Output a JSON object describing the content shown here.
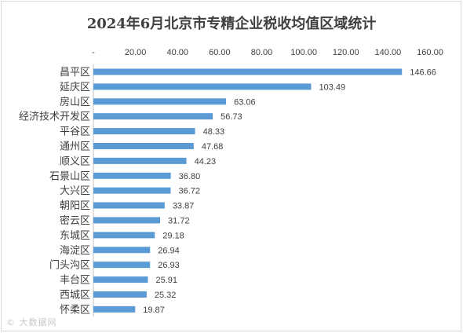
{
  "chart_data": {
    "type": "bar",
    "orientation": "horizontal",
    "title": "2024年6月北京市专精企业税收均值区域统计",
    "categories": [
      "昌平区",
      "延庆区",
      "房山区",
      "经济技术开发区",
      "平谷区",
      "通州区",
      "顺义区",
      "石景山区",
      "大兴区",
      "朝阳区",
      "密云区",
      "东城区",
      "海淀区",
      "门头沟区",
      "丰台区",
      "西城区",
      "怀柔区"
    ],
    "values": [
      146.66,
      103.49,
      63.06,
      56.73,
      48.33,
      47.68,
      44.23,
      36.8,
      36.72,
      33.87,
      31.72,
      29.18,
      26.94,
      26.93,
      25.91,
      25.32,
      19.87
    ],
    "value_labels": [
      "146.66",
      "103.49",
      "63.06",
      "56.73",
      "48.33",
      "47.68",
      "44.23",
      "36.80",
      "36.72",
      "33.87",
      "31.72",
      "29.18",
      "26.94",
      "26.93",
      "25.91",
      "25.32",
      "19.87"
    ],
    "xlim": [
      0,
      160
    ],
    "x_ticks": [
      "-",
      "20.00",
      "40.00",
      "60.00",
      "80.00",
      "100.00",
      "120.00",
      "140.00",
      "160.00"
    ],
    "x_axis_position": "top",
    "grid": false,
    "legend": "none",
    "bar_color": "#5b9bd5"
  },
  "watermark": "© 大数据网"
}
